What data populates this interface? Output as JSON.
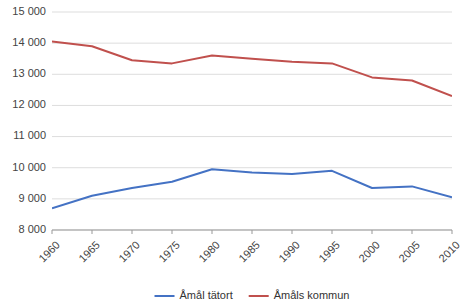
{
  "chart_data": {
    "type": "line",
    "x": [
      1960,
      1965,
      1970,
      1975,
      1980,
      1985,
      1990,
      1995,
      2000,
      2005,
      2010
    ],
    "series": [
      {
        "name": "Åmål tätort",
        "color": "#4472C4",
        "values": [
          8700,
          9100,
          9350,
          9550,
          9950,
          9850,
          9800,
          9900,
          9350,
          9400,
          9050
        ]
      },
      {
        "name": "Åmåls kommun",
        "color": "#C0504D",
        "values": [
          14050,
          13900,
          13450,
          13350,
          13600,
          13500,
          13400,
          13350,
          12900,
          12800,
          12300
        ]
      }
    ],
    "xlim": [
      1960,
      2010
    ],
    "xticks": [
      1960,
      1965,
      1970,
      1975,
      1980,
      1985,
      1990,
      1995,
      2000,
      2005,
      2010
    ],
    "ylim": [
      8000,
      15000
    ],
    "yticks": [
      {
        "value": 8000,
        "label": "8 000"
      },
      {
        "value": 9000,
        "label": "9 000"
      },
      {
        "value": 10000,
        "label": "10 000"
      },
      {
        "value": 11000,
        "label": "11 000"
      },
      {
        "value": 12000,
        "label": "12 000"
      },
      {
        "value": 13000,
        "label": "13 000"
      },
      {
        "value": 14000,
        "label": "14 000"
      },
      {
        "value": 15000,
        "label": "15 000"
      }
    ],
    "grid": true,
    "legend": "bottom"
  }
}
